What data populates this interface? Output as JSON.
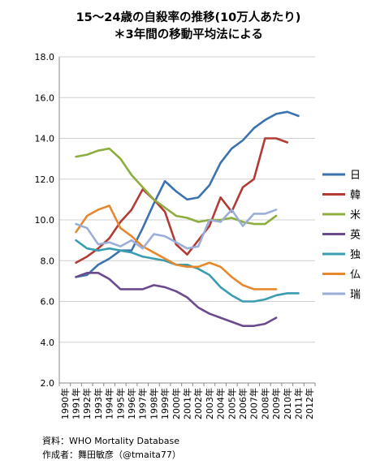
{
  "chart_data": {
    "type": "line",
    "title_lines": [
      "15～24歳の自殺率の推移(10万人あたり)",
      "＊3年間の移動平均法による"
    ],
    "x": [
      "1990年",
      "1991年",
      "1992年",
      "1993年",
      "1994年",
      "1995年",
      "1996年",
      "1997年",
      "1998年",
      "1999年",
      "2000年",
      "2001年",
      "2002年",
      "2003年",
      "2004年",
      "2005年",
      "2006年",
      "2007年",
      "2008年",
      "2009年",
      "2010年",
      "2011年",
      "2012年"
    ],
    "ylim": [
      2.0,
      18.0
    ],
    "yticks": [
      "2.0",
      "4.0",
      "6.0",
      "8.0",
      "10.0",
      "12.0",
      "14.0",
      "16.0",
      "18.0"
    ],
    "grid": true,
    "legend_position": "right",
    "series": [
      {
        "name": "日",
        "color": "#3b72b0",
        "values": [
          null,
          7.2,
          7.3,
          7.8,
          8.1,
          8.5,
          8.5,
          9.6,
          10.8,
          11.9,
          11.4,
          11.0,
          11.1,
          11.7,
          12.8,
          13.5,
          13.9,
          14.5,
          14.9,
          15.2,
          15.3,
          15.1,
          null
        ]
      },
      {
        "name": "韓",
        "color": "#b23b35",
        "values": [
          null,
          7.9,
          8.2,
          8.6,
          9.1,
          9.9,
          10.5,
          11.5,
          11.0,
          10.4,
          8.8,
          8.3,
          9.0,
          9.7,
          11.1,
          10.4,
          11.6,
          12.0,
          14.0,
          14.0,
          13.8,
          null,
          null
        ]
      },
      {
        "name": "米",
        "color": "#8dae3e",
        "values": [
          null,
          13.1,
          13.2,
          13.4,
          13.5,
          13.0,
          12.2,
          11.6,
          11.0,
          10.6,
          10.2,
          10.1,
          9.9,
          10.0,
          10.0,
          10.1,
          9.9,
          9.8,
          9.8,
          10.2,
          null,
          null,
          null
        ]
      },
      {
        "name": "英",
        "color": "#6b4a8e",
        "values": [
          null,
          7.2,
          7.4,
          7.4,
          7.1,
          6.6,
          6.6,
          6.6,
          6.8,
          6.7,
          6.5,
          6.2,
          5.7,
          5.4,
          5.2,
          5.0,
          4.8,
          4.8,
          4.9,
          5.2,
          null,
          null,
          null
        ]
      },
      {
        "name": "独",
        "color": "#3a9cb0",
        "values": [
          null,
          9.0,
          8.6,
          8.5,
          8.6,
          8.5,
          8.4,
          8.2,
          8.1,
          8.0,
          7.8,
          7.8,
          7.6,
          7.3,
          6.7,
          6.3,
          6.0,
          6.0,
          6.1,
          6.3,
          6.4,
          6.4,
          null
        ]
      },
      {
        "name": "仏",
        "color": "#e6882d",
        "values": [
          null,
          9.4,
          10.2,
          10.5,
          10.7,
          9.6,
          9.2,
          8.7,
          8.4,
          8.1,
          7.8,
          7.7,
          7.7,
          7.9,
          7.7,
          7.2,
          6.8,
          6.6,
          6.6,
          6.6,
          null,
          null,
          null
        ]
      },
      {
        "name": "瑞",
        "color": "#9aaed8",
        "values": [
          null,
          9.8,
          9.6,
          8.8,
          8.9,
          8.7,
          9.0,
          8.6,
          9.3,
          9.2,
          8.9,
          8.6,
          8.7,
          10.0,
          9.9,
          10.5,
          9.7,
          10.3,
          10.3,
          10.5,
          null,
          null,
          null
        ]
      }
    ]
  },
  "footer": {
    "source": "資料：WHO Mortality Database",
    "author": "作成者：舞田敏彦（@tmaita77）"
  }
}
